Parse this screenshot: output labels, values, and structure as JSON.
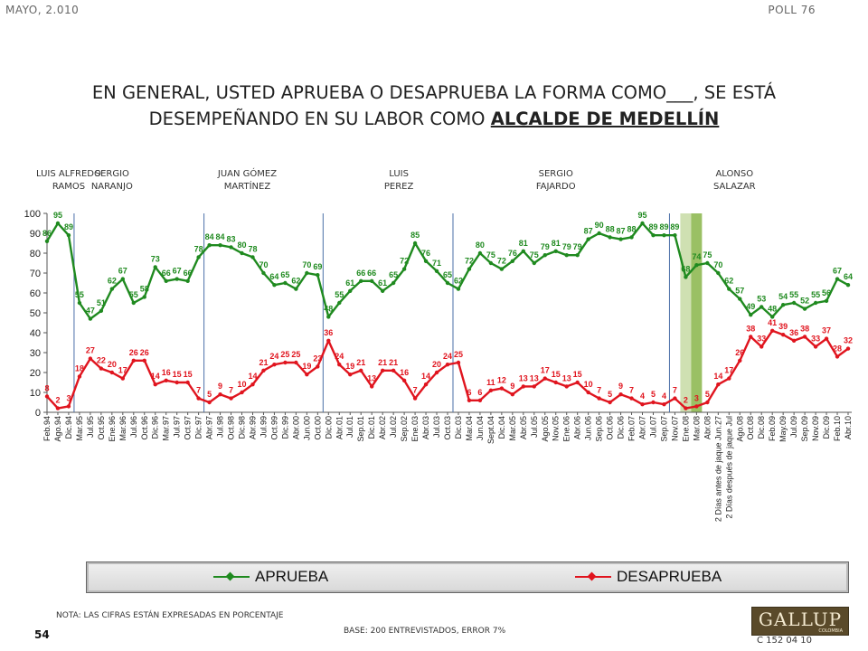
{
  "header": {
    "date": "MAYO, 2.010",
    "poll": "POLL 76"
  },
  "title": {
    "line1": "EN GENERAL, USTED APRUEBA O DESAPRUEBA LA FORMA COMO___, SE ESTÁ",
    "line2_prefix": "DESEMPEÑANDO EN SU LABOR COMO ",
    "line2_emphasis": "ALCALDE DE MEDELLÍN"
  },
  "eras": [
    {
      "name1": "LUIS ALFREDO",
      "name2": "RAMOS",
      "index": 2
    },
    {
      "name1": "SERGIO",
      "name2": "NARANJO",
      "index": 6
    },
    {
      "name1": "JUAN GÓMEZ",
      "name2": "MARTÍNEZ",
      "index": 18.5
    },
    {
      "name1": "LUIS",
      "name2": "PEREZ",
      "index": 32.5
    },
    {
      "name1": "SERGIO",
      "name2": "FAJARDO",
      "index": 47
    },
    {
      "name1": "ALONSO",
      "name2": "SALAZAR",
      "index": 63.5
    }
  ],
  "chart_data": {
    "type": "line",
    "ylim": [
      0,
      100
    ],
    "yticks": [
      0,
      10,
      20,
      30,
      40,
      50,
      60,
      70,
      80,
      90,
      100
    ],
    "dividers_after_index": [
      2,
      14,
      25,
      37,
      57
    ],
    "highlights": [
      {
        "index": 59,
        "color": "#cfe0b2"
      },
      {
        "index": 60,
        "color": "#9ac064"
      }
    ],
    "categories": [
      "Feb.94",
      "Ago.94",
      "Dic.94",
      "Mar.95",
      "Jul.95",
      "Oct.95",
      "Ene.96",
      "Mar.96",
      "Jul.96",
      "Oct.96",
      "Dic.96",
      "Mar.97",
      "Jul.97",
      "Oct.97",
      "Dic.97",
      "Abr.97",
      "Jul.98",
      "Oct.98",
      "Dic.98",
      "Abr.99",
      "Jul.99",
      "Oct.99",
      "Dic.99",
      "Abr.00",
      "Jun.00",
      "Oct.00",
      "Dic.00",
      "Abr.01",
      "Jul.01",
      "Sep.01",
      "Dic.01",
      "Abr.02",
      "Jul.02",
      "Sep.02",
      "Ene.03",
      "Abr.03",
      "Jul.03",
      "Oct.03",
      "Dic.03",
      "Mar.04",
      "Jun.04",
      "Sept.04",
      "Dic.04",
      "Mar.05",
      "Abr.05",
      "Jul.05",
      "Ago.05",
      "Nov.05",
      "Ene.06",
      "Abr.06",
      "Jun.06",
      "Sep.06",
      "Oct.06",
      "Dic.06",
      "Feb.07",
      "Abr.07",
      "Jul.07",
      "Sep.07",
      "Nov.07",
      "Ene.08",
      "Mar.08",
      "Abr.08",
      "2 Días antes de jaque Jun.27",
      "2 Días después de jaque Jul",
      "Ago.08",
      "Oct.08",
      "Dic.08",
      "Feb.09",
      "May.09",
      "Jul.09",
      "Sep.09",
      "Nov.09",
      "Dic.09",
      "Feb.10",
      "Abr.10"
    ],
    "series": [
      {
        "name": "APRUEBA",
        "color": "#1f8a1f",
        "values": [
          86,
          95,
          89,
          55,
          47,
          51,
          62,
          67,
          55,
          58,
          73,
          66,
          67,
          66,
          78,
          84,
          84,
          83,
          80,
          78,
          70,
          64,
          65,
          62,
          70,
          69,
          48,
          55,
          61,
          66,
          66,
          61,
          65,
          72,
          85,
          76,
          71,
          65,
          62,
          72,
          80,
          75,
          72,
          76,
          81,
          75,
          79,
          81,
          79,
          79,
          87,
          90,
          88,
          87,
          88,
          95,
          89,
          89,
          89,
          68,
          74,
          75,
          70,
          62,
          57,
          49,
          53,
          48,
          54,
          55,
          52,
          55,
          56,
          67,
          64
        ]
      },
      {
        "name": "DESAPRUEBA",
        "color": "#e0141e",
        "values": [
          8,
          2,
          3,
          18,
          27,
          22,
          20,
          17,
          26,
          26,
          14,
          16,
          15,
          15,
          7,
          5,
          9,
          7,
          10,
          14,
          21,
          24,
          25,
          25,
          19,
          23,
          36,
          24,
          19,
          21,
          13,
          21,
          21,
          16,
          7,
          14,
          20,
          24,
          25,
          6,
          6,
          11,
          12,
          9,
          13,
          13,
          17,
          15,
          13,
          15,
          10,
          7,
          5,
          9,
          7,
          4,
          5,
          4,
          7,
          2,
          3,
          5,
          14,
          17,
          26,
          38,
          33,
          41,
          39,
          36,
          38,
          33,
          37,
          28,
          32
        ]
      }
    ]
  },
  "legend": {
    "approve": "APRUEBA",
    "disapprove": "DESAPRUEBA"
  },
  "footer": {
    "note": "NOTA: LAS CIFRAS ESTÁN EXPRESADAS EN PORCENTAJE",
    "base": "BASE: 200 ENTREVISTADOS, ERROR 7%",
    "page": "54",
    "code": "C 152 04 10",
    "logo": "GALLUP",
    "logo_sub": "COLOMBIA"
  }
}
